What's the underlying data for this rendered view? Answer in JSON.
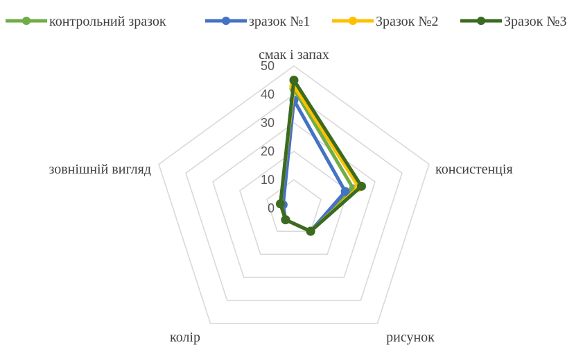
{
  "chart_data": {
    "type": "radar",
    "axes": [
      "смак і запах",
      "консистенція",
      "рисунок",
      "колір",
      "зовнішній вигляд"
    ],
    "rlim": [
      0,
      50
    ],
    "ticks": [
      0,
      10,
      20,
      30,
      40,
      50
    ],
    "grid": true,
    "legend_position": "top",
    "series": [
      {
        "name": "контрольний зразок",
        "color": "#70ad47",
        "values": [
          42,
          22,
          10,
          5,
          5
        ]
      },
      {
        "name": "зразок №1",
        "color": "#4472c4",
        "values": [
          38,
          19,
          10,
          5,
          4
        ]
      },
      {
        "name": "Зразок №2",
        "color": "#ffc000",
        "values": [
          43,
          24,
          10,
          5,
          5
        ]
      },
      {
        "name": "Зразок №3",
        "color": "#3a6b21",
        "values": [
          45,
          25,
          10,
          5,
          5
        ]
      }
    ]
  }
}
